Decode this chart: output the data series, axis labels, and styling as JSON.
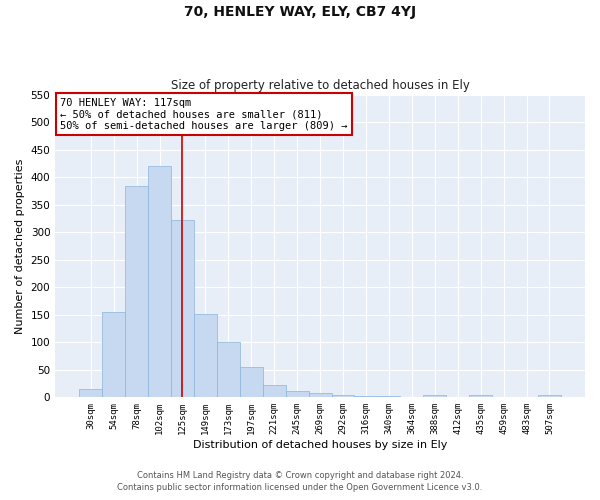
{
  "title": "70, HENLEY WAY, ELY, CB7 4YJ",
  "subtitle": "Size of property relative to detached houses in Ely",
  "xlabel": "Distribution of detached houses by size in Ely",
  "ylabel": "Number of detached properties",
  "bar_color": "#c6d9f1",
  "bar_edgecolor": "#8ab4d8",
  "background_color": "#e8eef8",
  "grid_color": "#ffffff",
  "categories": [
    "30sqm",
    "54sqm",
    "78sqm",
    "102sqm",
    "125sqm",
    "149sqm",
    "173sqm",
    "197sqm",
    "221sqm",
    "245sqm",
    "269sqm",
    "292sqm",
    "316sqm",
    "340sqm",
    "364sqm",
    "388sqm",
    "412sqm",
    "435sqm",
    "459sqm",
    "483sqm",
    "507sqm"
  ],
  "values": [
    15,
    155,
    383,
    420,
    322,
    152,
    100,
    55,
    22,
    12,
    8,
    5,
    3,
    2,
    1,
    4,
    1,
    4,
    1,
    1,
    5
  ],
  "ylim": [
    0,
    550
  ],
  "yticks": [
    0,
    50,
    100,
    150,
    200,
    250,
    300,
    350,
    400,
    450,
    500,
    550
  ],
  "vline_x_index": 4,
  "vline_color": "#cc0000",
  "annotation_lines": [
    "70 HENLEY WAY: 117sqm",
    "← 50% of detached houses are smaller (811)",
    "50% of semi-detached houses are larger (809) →"
  ],
  "annotation_box_color": "#cc0000",
  "footnote1": "Contains HM Land Registry data © Crown copyright and database right 2024.",
  "footnote2": "Contains public sector information licensed under the Open Government Licence v3.0."
}
